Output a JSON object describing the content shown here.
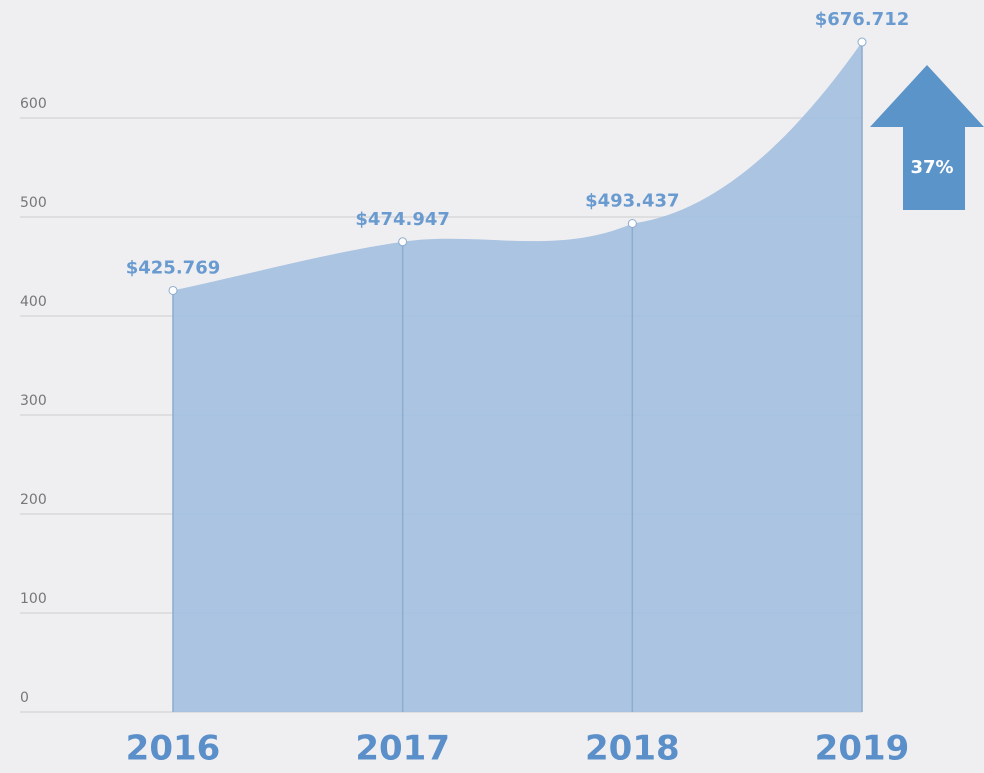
{
  "chart_data": {
    "type": "area",
    "categories": [
      "2016",
      "2017",
      "2018",
      "2019"
    ],
    "series": [
      {
        "color": "#a5c1e0",
        "values": [
          425.769,
          474.947,
          493.437,
          676.712
        ],
        "value_labels": [
          "$425.769",
          "$474.947",
          "$493.437",
          "$676.712"
        ]
      }
    ],
    "ylim": [
      0,
      700
    ],
    "yticks": [
      0,
      100,
      200,
      300,
      400,
      500,
      600
    ],
    "grid": true,
    "annotation": "37%"
  }
}
